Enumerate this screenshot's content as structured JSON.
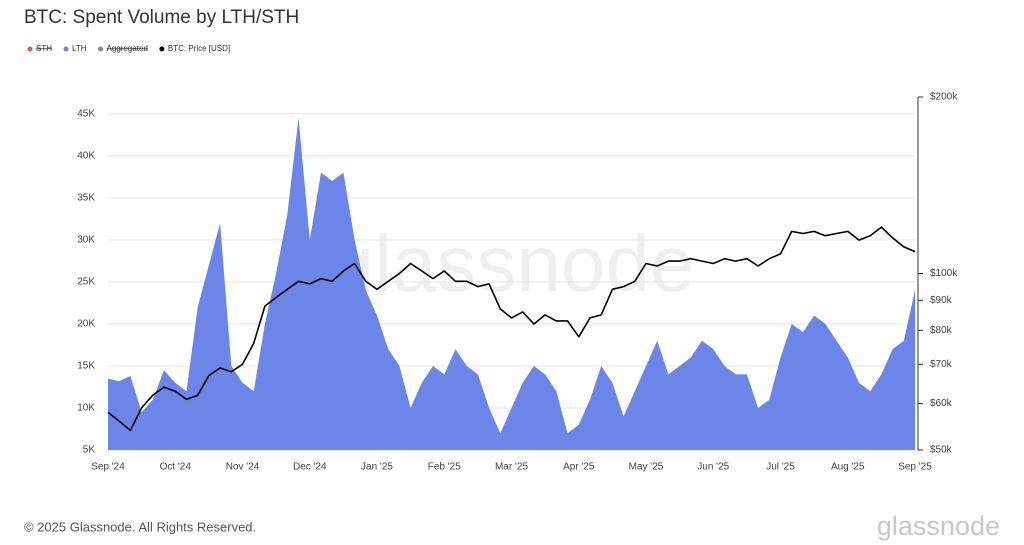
{
  "chart_data": {
    "type": "area-line",
    "title": "BTC: Spent Volume by LTH/STH",
    "footer": "© 2025 Glassnode. All Rights Reserved.",
    "watermark": "glassnode",
    "categories": [
      "Sep '24",
      null,
      null,
      null,
      null,
      null,
      "Oct '24",
      null,
      null,
      null,
      null,
      null,
      "Nov '24",
      null,
      null,
      null,
      null,
      null,
      "Dec '24",
      null,
      null,
      null,
      null,
      null,
      "Jan '25",
      null,
      null,
      null,
      null,
      null,
      "Feb '25",
      null,
      null,
      null,
      null,
      null,
      "Mar '25",
      null,
      null,
      null,
      null,
      null,
      "Apr '25",
      null,
      null,
      null,
      null,
      null,
      "May '25",
      null,
      null,
      null,
      null,
      null,
      "Jun '25",
      null,
      null,
      null,
      null,
      null,
      "Jul '25",
      null,
      null,
      null,
      null,
      null,
      "Aug '25",
      null,
      null,
      null,
      null,
      null,
      "Sep '25"
    ],
    "series": [
      {
        "name": "STH",
        "color": "#e05555",
        "visible": false
      },
      {
        "name": "LTH",
        "color": "#6b86e8",
        "values": [
          13500,
          13200,
          13800,
          9500,
          11000,
          14500,
          13000,
          12000,
          22000,
          27000,
          32000,
          15000,
          13000,
          12000,
          20000,
          26000,
          33000,
          44500,
          30000,
          38000,
          37000,
          38000,
          30000,
          24000,
          21000,
          17000,
          15000,
          10000,
          13000,
          15000,
          14000,
          17000,
          15000,
          14000,
          10000,
          7000,
          10000,
          13000,
          15000,
          14000,
          12000,
          7000,
          8000,
          11000,
          15000,
          13000,
          9000,
          12000,
          15000,
          18000,
          14000,
          15000,
          16000,
          18000,
          17000,
          15000,
          14000,
          14000,
          10000,
          11000,
          16000,
          20000,
          19000,
          21000,
          20000,
          18000,
          16000,
          13000,
          12000,
          14000,
          17000,
          18000,
          24000
        ]
      },
      {
        "name": "Aggregated",
        "color": "#888888",
        "visible": false
      },
      {
        "name": "BTC: Price [USD]",
        "color": "#000000",
        "axis": "y2",
        "values": [
          58000,
          56000,
          54000,
          59000,
          62000,
          64000,
          63000,
          61000,
          62000,
          67000,
          69000,
          68000,
          70000,
          76000,
          88000,
          91000,
          94000,
          97000,
          96000,
          98000,
          97000,
          101000,
          104000,
          97000,
          94000,
          97000,
          100000,
          104000,
          101000,
          98000,
          101000,
          97000,
          97000,
          95000,
          96000,
          87000,
          84000,
          86000,
          82000,
          85000,
          83000,
          83000,
          78000,
          84000,
          85000,
          94000,
          95000,
          97000,
          104000,
          103000,
          105000,
          105000,
          106000,
          105000,
          104000,
          106000,
          105000,
          106000,
          103000,
          106000,
          108000,
          118000,
          117000,
          118000,
          116000,
          117000,
          118000,
          114000,
          116000,
          120000,
          115000,
          111000,
          109000
        ]
      }
    ],
    "ylim": [
      5000,
      47000
    ],
    "yticks": [
      {
        "value": 5000,
        "label": "5K"
      },
      {
        "value": 10000,
        "label": "10K"
      },
      {
        "value": 15000,
        "label": "15K"
      },
      {
        "value": 20000,
        "label": "20K"
      },
      {
        "value": 25000,
        "label": "25K"
      },
      {
        "value": 30000,
        "label": "30K"
      },
      {
        "value": 35000,
        "label": "35K"
      },
      {
        "value": 40000,
        "label": "40K"
      },
      {
        "value": 45000,
        "label": "45K"
      }
    ],
    "y2lim": [
      50000,
      200000
    ],
    "y2log": true,
    "y2ticks": [
      {
        "value": 50000,
        "label": "$50k"
      },
      {
        "value": 60000,
        "label": "$60k"
      },
      {
        "value": 70000,
        "label": "$70k"
      },
      {
        "value": 80000,
        "label": "$80k"
      },
      {
        "value": 90000,
        "label": "$90k"
      },
      {
        "value": 100000,
        "label": "$100k"
      },
      {
        "value": 200000,
        "label": "$200k"
      }
    ],
    "grid": true
  }
}
